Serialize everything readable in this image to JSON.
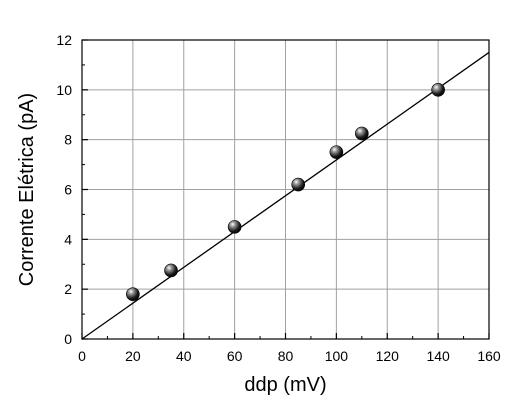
{
  "chart_data": {
    "type": "scatter",
    "xlabel": "ddp (mV)",
    "ylabel": "Corrente Elétrica (pA)",
    "xlim": [
      0,
      160
    ],
    "ylim": [
      0,
      12
    ],
    "x_ticks": [
      "0",
      "20",
      "40",
      "60",
      "80",
      "100",
      "120",
      "140",
      "160"
    ],
    "y_ticks": [
      "0",
      "2",
      "4",
      "6",
      "8",
      "10",
      "12"
    ],
    "grid": true,
    "series": [
      {
        "points": [
          {
            "x": 20,
            "y": 1.8
          },
          {
            "x": 35,
            "y": 2.75
          },
          {
            "x": 60,
            "y": 4.5
          },
          {
            "x": 85,
            "y": 6.2
          },
          {
            "x": 100,
            "y": 7.5
          },
          {
            "x": 110,
            "y": 8.25
          },
          {
            "x": 140,
            "y": 10.0
          }
        ]
      }
    ],
    "fit_line": {
      "x": [
        0,
        160
      ],
      "y": [
        0,
        11.5
      ]
    }
  }
}
